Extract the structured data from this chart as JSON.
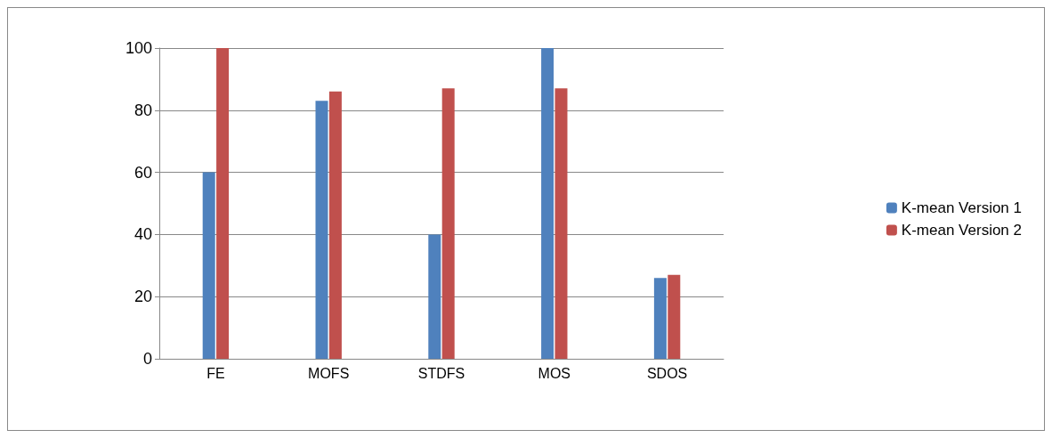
{
  "chart_data": {
    "type": "bar",
    "categories": [
      "FE",
      "MOFS",
      "STDFS",
      "MOS",
      "SDOS"
    ],
    "series": [
      {
        "name": "K-mean Version 1",
        "color": "#4f81bd",
        "values": [
          60,
          83,
          40,
          100,
          26
        ]
      },
      {
        "name": "K-mean Version 2",
        "color": "#c0504d",
        "values": [
          100,
          86,
          87,
          87,
          27
        ]
      }
    ],
    "ylim": [
      0,
      100
    ],
    "yticks": [
      0,
      20,
      40,
      60,
      80,
      100
    ],
    "grid": "y",
    "legend": "right"
  }
}
